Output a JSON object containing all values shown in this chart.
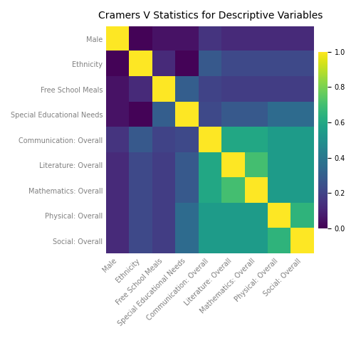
{
  "title": "Cramers V Statistics for Descriptive Variables",
  "labels": [
    "Male",
    "Ethnicity",
    "Free School Meals",
    "Special Educational Needs",
    "Communication: Overall",
    "Literature: Overall",
    "Mathematics: Overall",
    "Physical: Overall",
    "Social: Overall"
  ],
  "matrix": [
    [
      1.0,
      0.01,
      0.05,
      0.05,
      0.15,
      0.12,
      0.12,
      0.12,
      0.12
    ],
    [
      0.01,
      1.0,
      0.12,
      0.01,
      0.28,
      0.22,
      0.22,
      0.22,
      0.22
    ],
    [
      0.05,
      0.12,
      1.0,
      0.3,
      0.2,
      0.18,
      0.18,
      0.18,
      0.18
    ],
    [
      0.05,
      0.01,
      0.3,
      1.0,
      0.22,
      0.28,
      0.28,
      0.35,
      0.35
    ],
    [
      0.15,
      0.28,
      0.2,
      0.22,
      1.0,
      0.6,
      0.6,
      0.55,
      0.55
    ],
    [
      0.12,
      0.22,
      0.18,
      0.28,
      0.6,
      1.0,
      0.7,
      0.55,
      0.55
    ],
    [
      0.12,
      0.22,
      0.18,
      0.28,
      0.6,
      0.7,
      1.0,
      0.55,
      0.55
    ],
    [
      0.12,
      0.22,
      0.18,
      0.35,
      0.55,
      0.55,
      0.55,
      1.0,
      0.65
    ],
    [
      0.12,
      0.22,
      0.18,
      0.35,
      0.55,
      0.55,
      0.55,
      0.65,
      1.0
    ]
  ],
  "cmap": "viridis",
  "vmin": 0,
  "vmax": 1,
  "colorbar_ticks": [
    0,
    0.2,
    0.4,
    0.6,
    0.8,
    1.0
  ],
  "figsize": [
    5.0,
    4.75
  ],
  "dpi": 100,
  "title_fontsize": 10,
  "tick_fontsize": 7,
  "colorbar_fontsize": 7,
  "bg_color": "#ffffff"
}
